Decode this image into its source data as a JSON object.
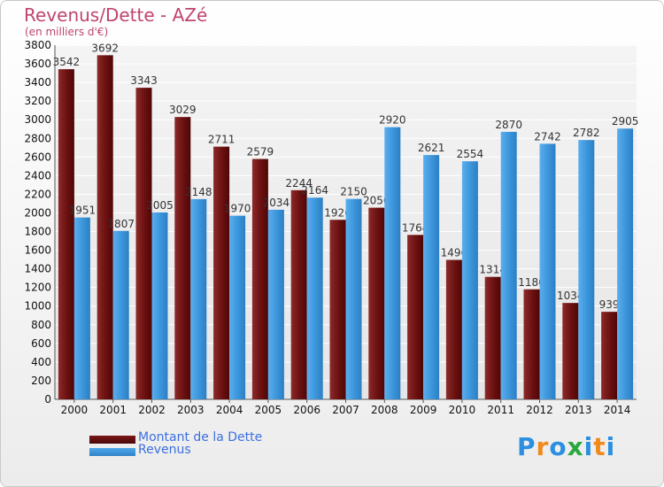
{
  "title": "Revenus/Dette - AZé",
  "subtitle": "(en milliers d'€)",
  "logo": {
    "letters": [
      "P",
      "r",
      "o",
      "x",
      "i",
      "t",
      "i"
    ],
    "colors": [
      "#2c8fe0",
      "#f08a1c",
      "#2c8fe0",
      "#2aa83f",
      "#2c8fe0",
      "#f08a1c",
      "#2c8fe0"
    ]
  },
  "colors": {
    "dette": "#7a1616",
    "revenus": "#3d97dc",
    "title": "#c0446f",
    "legend_text": "#3b6fe0"
  },
  "chart_data": {
    "type": "bar",
    "title": "Revenus/Dette - AZé",
    "subtitle": "(en milliers d'€)",
    "xlabel": "",
    "ylabel": "",
    "ylim": [
      0,
      3800
    ],
    "yticks": [
      0,
      200,
      400,
      600,
      800,
      1000,
      1200,
      1400,
      1600,
      1800,
      2000,
      2200,
      2400,
      2600,
      2800,
      3000,
      3200,
      3400,
      3600,
      3800
    ],
    "grid": true,
    "legend_position": "bottom-left",
    "categories": [
      "2000",
      "2001",
      "2002",
      "2003",
      "2004",
      "2005",
      "2006",
      "2007",
      "2008",
      "2009",
      "2010",
      "2011",
      "2012",
      "2013",
      "2014"
    ],
    "series": [
      {
        "name": "Montant de la Dette",
        "color": "#7a1616",
        "values": [
          3542,
          3692,
          3343,
          3029,
          2711,
          2579,
          2244,
          1926,
          2056,
          1764,
          1496,
          1314,
          1180,
          1034,
          939
        ],
        "labels": [
          "3542",
          "3692",
          "3343",
          "3029",
          "2711",
          "2579",
          "2244",
          "1926",
          "2056",
          "1764",
          "1496",
          "1314",
          "1180",
          "1034",
          "939"
        ]
      },
      {
        "name": "Revenus",
        "color": "#3d97dc",
        "values": [
          1951,
          1807,
          2005,
          2148,
          1970,
          2034,
          2164,
          2150,
          2920,
          2621,
          2554,
          2870,
          2742,
          2782,
          2905
        ],
        "labels": [
          "1951",
          "1807",
          "2005",
          "2148",
          "1970",
          "2034",
          "2164",
          "2150",
          "2920",
          "2621",
          "2554",
          "2870",
          "2742",
          "2782",
          "2905"
        ]
      }
    ]
  }
}
